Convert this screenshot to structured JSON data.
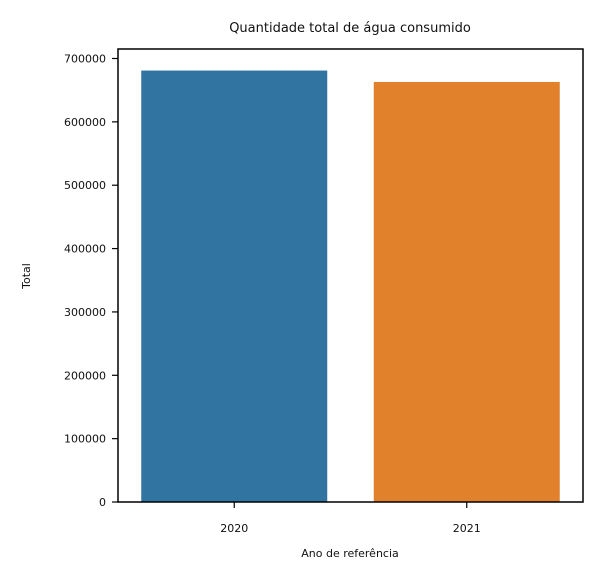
{
  "chart_data": {
    "type": "bar",
    "title": "Quantidade total de água consumido",
    "xlabel": "Ano de referência",
    "ylabel": "Total",
    "categories": [
      "2020",
      "2021"
    ],
    "values": [
      681000,
      663000
    ],
    "colors": [
      "#3274a1",
      "#e1812c"
    ],
    "ylim": [
      0,
      715000
    ],
    "yticks": [
      0,
      100000,
      200000,
      300000,
      400000,
      500000,
      600000,
      700000
    ],
    "ytick_labels": [
      "0",
      "100000",
      "200000",
      "300000",
      "400000",
      "500000",
      "600000",
      "700000"
    ],
    "grid": false,
    "legend": "none"
  }
}
